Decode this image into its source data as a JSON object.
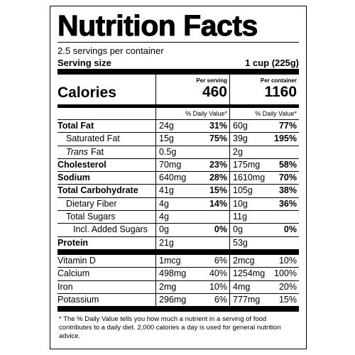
{
  "title": "Nutrition Facts",
  "servings": "2.5 servings per container",
  "serving_size": {
    "label": "Serving size",
    "value": "1 cup (225g)"
  },
  "calories": {
    "label": "Calories",
    "per_serving_header": "Per serving",
    "per_serving": "460",
    "per_container_header": "Per container",
    "per_container": "1160"
  },
  "dv_header": {
    "per_serving": "% Daily Value*",
    "per_container": "% Daily Value*"
  },
  "nutrients": [
    {
      "name": "Total Fat",
      "serving_amount": "24g",
      "serving_dv": "31%",
      "container_amount": "60g",
      "container_dv": "77%"
    },
    {
      "name": "Saturated Fat",
      "serving_amount": "15g",
      "serving_dv": "75%",
      "container_amount": "39g",
      "container_dv": "195%"
    },
    {
      "name_italic": "Trans",
      "name": "Fat",
      "serving_amount": "0.5g",
      "container_amount": "2g"
    },
    {
      "name": "Cholesterol",
      "serving_amount": "70mg",
      "serving_dv": "23%",
      "container_amount": "175mg",
      "container_dv": "58%"
    },
    {
      "name": "Sodium",
      "serving_amount": "640mg",
      "serving_dv": "28%",
      "container_amount": "1610mg",
      "container_dv": "70%"
    },
    {
      "name": "Total Carbohydrate",
      "serving_amount": "41g",
      "serving_dv": "15%",
      "container_amount": "105g",
      "container_dv": "38%"
    },
    {
      "name": "Dietary Fiber",
      "serving_amount": "4g",
      "serving_dv": "14%",
      "container_amount": "10g",
      "container_dv": "36%"
    },
    {
      "name": "Total Sugars",
      "serving_amount": "4g",
      "container_amount": "11g"
    },
    {
      "name": "Incl. Added Sugars",
      "serving_amount": "0g",
      "serving_dv": "0%",
      "container_amount": "0g",
      "container_dv": "0%"
    },
    {
      "name": "Protein",
      "serving_amount": "21g",
      "container_amount": "53g"
    }
  ],
  "vitamins": [
    {
      "name": "Vitamin D",
      "serving_amount": "1mcg",
      "serving_dv": "6%",
      "container_amount": "2mcg",
      "container_dv": "10%"
    },
    {
      "name": "Calcium",
      "serving_amount": "498mg",
      "serving_dv": "40%",
      "container_amount": "1254mg",
      "container_dv": "100%"
    },
    {
      "name": "Iron",
      "serving_amount": "2mg",
      "serving_dv": "10%",
      "container_amount": "4mg",
      "container_dv": "20%"
    },
    {
      "name": "Potassium",
      "serving_amount": "296mg",
      "serving_dv": "6%",
      "container_amount": "777mg",
      "container_dv": "15%"
    }
  ],
  "footnote": "* The % Daily Value tells you how much a nutrient in a serving of food contributes to a daily diet. 2,000 calories a day is used for general nutrition advice."
}
